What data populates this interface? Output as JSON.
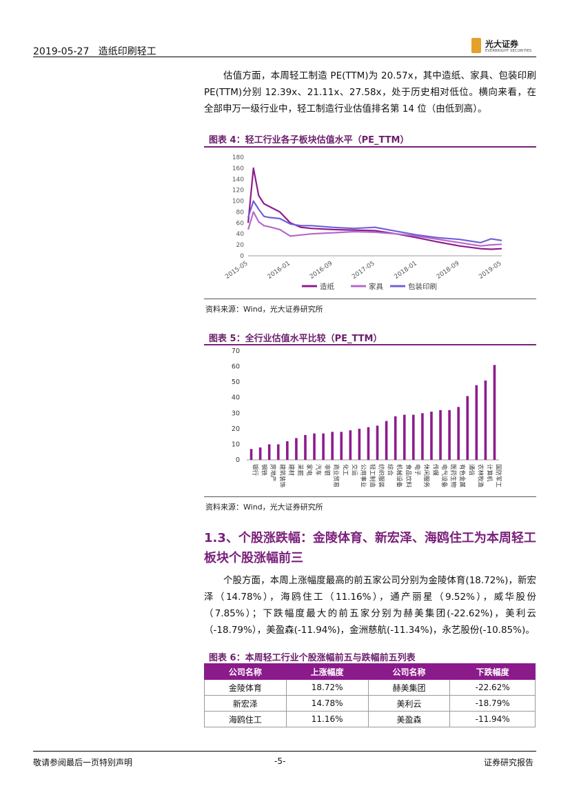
{
  "header": {
    "date": "2019-05-27",
    "sector": "造纸印刷轻工",
    "logo_cn": "光大证券",
    "logo_en": "EVERBRIGHT SECURITIES"
  },
  "paragraph1": "估值方面，本周轻工制造 PE(TTM)为 20.57x，其中造纸、家具、包装印刷 PE(TTM)分别 12.39x、21.11x、27.58x，处于历史相对低位。横向来看，在全部申万一级行业中，轻工制造行业估值排名第 14 位（由低到高）。",
  "figure4": {
    "title": "图表 4：轻工行业各子板块估值水平（PE_TTM）",
    "source": "资料来源：Wind，光大证券研究所"
  },
  "figure5": {
    "title": "图表 5：全行业估值水平比较（PE_TTM）",
    "source": "资料来源：Wind，光大证券研究所"
  },
  "section": {
    "title": "1.3、个股涨跌幅：金陵体育、新宏泽、海鸥住工为本周轻工板块个股涨幅前三",
    "paragraph": "个股方面，本周上涨幅度最高的前五家公司分别为金陵体育(18.72%)，新宏泽（14.78%），海鸥住工（11.16%），通产丽星（9.52%），威华股份（7.85%）；下跌幅度最大的前五家分别为赫美集团(-22.62%)，美利云（-18.79%），美盈森(-11.94%)，金洲慈航(-11.34%)，永艺股份(-10.85%)。"
  },
  "table6": {
    "title": "图表 6：本周轻工行业个股涨幅前五与跌幅前五列表",
    "headers": [
      "公司名称",
      "上涨幅度",
      "公司名称",
      "下跌幅度"
    ],
    "rows": [
      [
        "金陵体育",
        "18.72%",
        "赫美集团",
        "-22.62%"
      ],
      [
        "新宏泽",
        "14.78%",
        "美利云",
        "-18.79%"
      ],
      [
        "海鸥住工",
        "11.16%",
        "美盈森",
        "-11.94%"
      ]
    ]
  },
  "footer": {
    "left": "敬请参阅最后一页特别声明",
    "page": "-5-",
    "right": "证券研究报告"
  },
  "colors": {
    "accent": "#7a1f7a",
    "zaozhi": "#8e1b8e",
    "jiaju": "#b569c9",
    "baozhuang": "#6f5fd8",
    "bar": "#8e1b8e"
  },
  "chart_data": [
    {
      "type": "line",
      "ylim": [
        0,
        180
      ],
      "yticks": [
        0,
        20,
        40,
        60,
        80,
        100,
        120,
        140,
        160,
        180
      ],
      "xticks": [
        "2015-05",
        "2016-01",
        "2016-09",
        "2017-05",
        "2018-01",
        "2018-09",
        "2019-05"
      ],
      "legend_position": "bottom",
      "series": [
        {
          "name": "造纸",
          "x": [
            "2015-05",
            "2015-06",
            "2015-07",
            "2015-08",
            "2015-09",
            "2015-11",
            "2016-01",
            "2016-03",
            "2016-05",
            "2016-09",
            "2017-01",
            "2017-05",
            "2017-09",
            "2018-01",
            "2018-05",
            "2018-09",
            "2019-01",
            "2019-03",
            "2019-05"
          ],
          "values": [
            60,
            160,
            110,
            95,
            90,
            80,
            60,
            52,
            50,
            48,
            47,
            46,
            40,
            33,
            25,
            18,
            13,
            12,
            13
          ]
        },
        {
          "name": "家具",
          "x": [
            "2015-05",
            "2015-06",
            "2015-07",
            "2015-08",
            "2015-09",
            "2015-11",
            "2016-01",
            "2016-03",
            "2016-05",
            "2016-09",
            "2017-01",
            "2017-05",
            "2017-09",
            "2018-01",
            "2018-05",
            "2018-09",
            "2019-01",
            "2019-03",
            "2019-05"
          ],
          "values": [
            48,
            80,
            62,
            55,
            53,
            48,
            36,
            38,
            40,
            42,
            44,
            43,
            40,
            36,
            30,
            24,
            18,
            20,
            21
          ]
        },
        {
          "name": "包装印刷",
          "x": [
            "2015-05",
            "2015-06",
            "2015-07",
            "2015-08",
            "2015-09",
            "2015-11",
            "2016-01",
            "2016-03",
            "2016-05",
            "2016-09",
            "2017-01",
            "2017-05",
            "2017-09",
            "2018-01",
            "2018-05",
            "2018-09",
            "2019-01",
            "2019-03",
            "2019-05"
          ],
          "values": [
            70,
            100,
            85,
            72,
            70,
            68,
            58,
            55,
            55,
            52,
            50,
            52,
            45,
            38,
            33,
            30,
            24,
            31,
            28
          ]
        }
      ]
    },
    {
      "type": "bar",
      "ylim": [
        0,
        70
      ],
      "yticks": [
        0,
        10,
        20,
        30,
        40,
        50,
        60,
        70
      ],
      "categories": [
        "银行",
        "钢铁",
        "房地产",
        "建筑装饰",
        "建材",
        "采掘",
        "家电",
        "汽车",
        "非银",
        "商业贸易",
        "化工",
        "交运",
        "公用事业",
        "轻工制造",
        "纺织服装",
        "综合",
        "机械设备",
        "食品饮料",
        "电子",
        "休闲服务",
        "传媒",
        "电气设备",
        "医药生物",
        "有色金属",
        "通信",
        "农林牧渔",
        "计算机",
        "国防军工"
      ],
      "values": [
        7,
        8,
        10,
        10,
        12,
        14,
        16,
        17,
        17,
        18,
        18,
        19,
        20,
        21,
        22,
        25,
        28,
        29,
        29,
        30,
        31,
        32,
        32,
        34,
        41,
        48,
        51,
        61
      ]
    }
  ]
}
